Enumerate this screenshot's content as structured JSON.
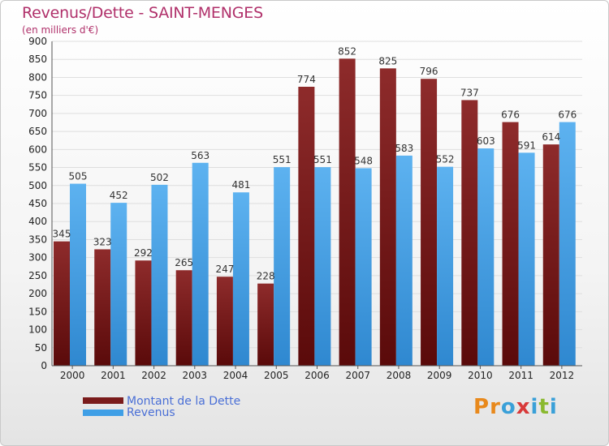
{
  "title": "Revenus/Dette - SAINT-MENGES",
  "subtitle": "(en milliers d'€)",
  "logo": [
    "P",
    "r",
    "o",
    "x",
    "i",
    "t",
    "i"
  ],
  "colors": {
    "debt": "#7a1c1c",
    "revenue": "#3f9fe6",
    "logo": [
      "#e8891c",
      "#e8891c",
      "#3aa0d8",
      "#d83a3a",
      "#3aa0d8",
      "#8ab92f",
      "#3aa0d8"
    ]
  },
  "chart_data": {
    "type": "bar",
    "title": "Revenus/Dette - SAINT-MENGES",
    "ylabel": "(en milliers d'€)",
    "xlabel": "",
    "ylim": [
      0,
      900
    ],
    "yticks": [
      0,
      50,
      100,
      150,
      200,
      250,
      300,
      350,
      400,
      450,
      500,
      550,
      600,
      650,
      700,
      750,
      800,
      850,
      900
    ],
    "categories": [
      "2000",
      "2001",
      "2002",
      "2003",
      "2004",
      "2005",
      "2006",
      "2007",
      "2008",
      "2009",
      "2010",
      "2011",
      "2012"
    ],
    "series": [
      {
        "name": "Montant de la Dette",
        "values": [
          345,
          323,
          292,
          265,
          247,
          228,
          774,
          852,
          825,
          796,
          737,
          676,
          614
        ]
      },
      {
        "name": "Revenus",
        "values": [
          505,
          452,
          502,
          563,
          481,
          551,
          551,
          548,
          583,
          552,
          603,
          591,
          676
        ]
      }
    ],
    "legend": "bottom-left"
  }
}
